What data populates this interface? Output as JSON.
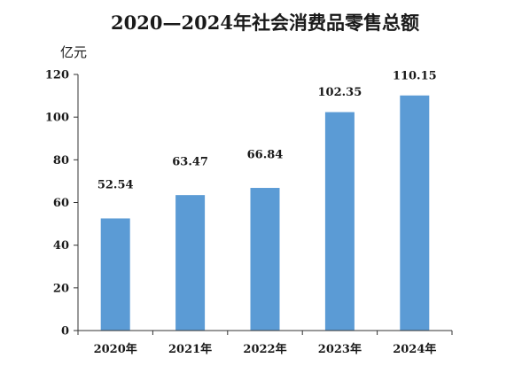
{
  "chart_data": {
    "type": "bar",
    "title": "2020—2024年社会消费品零售总额",
    "ylabel": "亿元",
    "xlabel": "",
    "categories": [
      "2020年",
      "2021年",
      "2022年",
      "2023年",
      "2024年"
    ],
    "values": [
      52.54,
      63.47,
      66.84,
      102.35,
      110.15
    ],
    "data_labels": [
      "52.54",
      "63.47",
      "66.84",
      "102.35",
      "110.15"
    ],
    "ylim": [
      0,
      120
    ],
    "yticks": [
      "0",
      "20",
      "40",
      "60",
      "80",
      "100",
      "120"
    ],
    "grid": false,
    "legend": "none",
    "bar_color": "#5b9bd5"
  }
}
